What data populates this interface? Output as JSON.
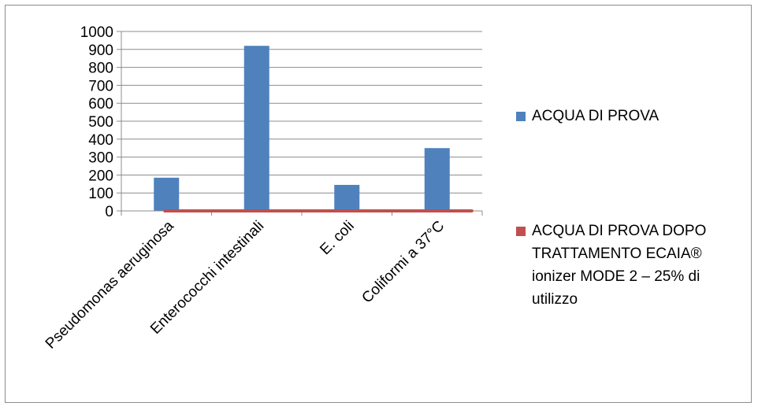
{
  "chart_data": {
    "type": "bar",
    "categories": [
      "Pseudomonas aeruginosa",
      "Enterococchi intestinali",
      "E. coli",
      "Coliformi a 37°C"
    ],
    "yticks": [
      "0",
      "100",
      "200",
      "300",
      "400",
      "500",
      "600",
      "700",
      "800",
      "900",
      "1000"
    ],
    "ylim": [
      0,
      1000
    ],
    "grid": true,
    "legend_position": "right",
    "series": [
      {
        "name": "ACQUA DI PROVA",
        "color": "#4f81bd",
        "kind": "bar",
        "values": [
          185,
          920,
          145,
          350
        ]
      },
      {
        "name": "ACQUA DI PROVA DOPO TRATTAMENTO ECAIA® ionizer MODE 2 – 25% di utilizzo",
        "color": "#c0504d",
        "kind": "line",
        "values": [
          0,
          0,
          0,
          0
        ]
      }
    ]
  },
  "legend": {
    "items": [
      {
        "label": "ACQUA DI PROVA",
        "color": "#4f81bd"
      },
      {
        "label_lines": [
          "ACQUA DI PROVA DOPO",
          "TRATTAMENTO ECAIA®",
          "ionizer MODE 2 – 25% di",
          "utilizzo"
        ],
        "color": "#c0504d"
      }
    ]
  }
}
